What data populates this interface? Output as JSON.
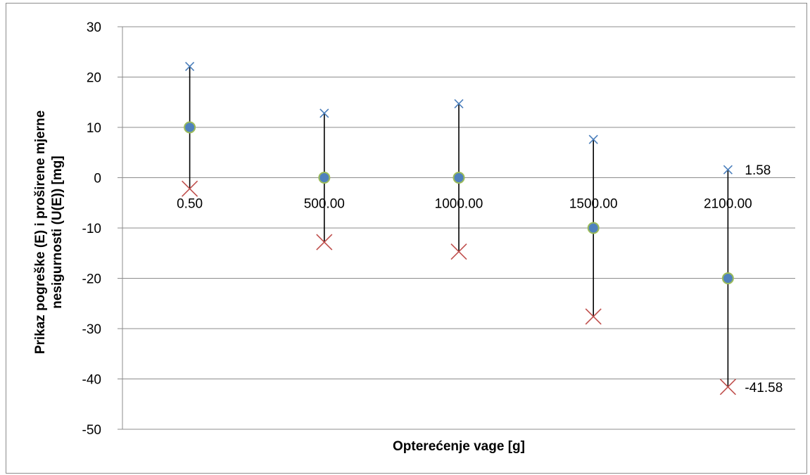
{
  "chart_data": {
    "type": "scatter",
    "categories": [
      "0.50",
      "500.00",
      "1000.00",
      "1500.00",
      "2100.00"
    ],
    "series": [
      {
        "values": [
          22.1,
          12.8,
          14.7,
          7.6,
          1.58
        ],
        "marker": "x-small",
        "color": "#4a7ebb"
      },
      {
        "values": [
          10,
          0,
          0,
          -10,
          -20
        ],
        "marker": "circle",
        "color": "#4f81bd",
        "edge": "#9bbb59"
      },
      {
        "values": [
          -2.2,
          -12.8,
          -14.7,
          -27.6,
          -41.58
        ],
        "marker": "x-large",
        "color": "#c0504d"
      }
    ],
    "error_bars": {
      "color": "#000000"
    },
    "xlabel": "Opterećenje vage [g]",
    "ylabel": [
      "Prikaz pogreške (E) i proširene mjerne",
      "nesigurnosti (U(E)) [mg]"
    ],
    "ylim": [
      -50,
      30
    ],
    "yticks": [
      30,
      20,
      10,
      0,
      -10,
      -20,
      -30,
      -40,
      -50
    ],
    "grid": true,
    "legend": "none",
    "data_labels": [
      {
        "series": 0,
        "index": 4,
        "text": "1.58"
      },
      {
        "series": 2,
        "index": 4,
        "text": "-41.58"
      }
    ]
  }
}
